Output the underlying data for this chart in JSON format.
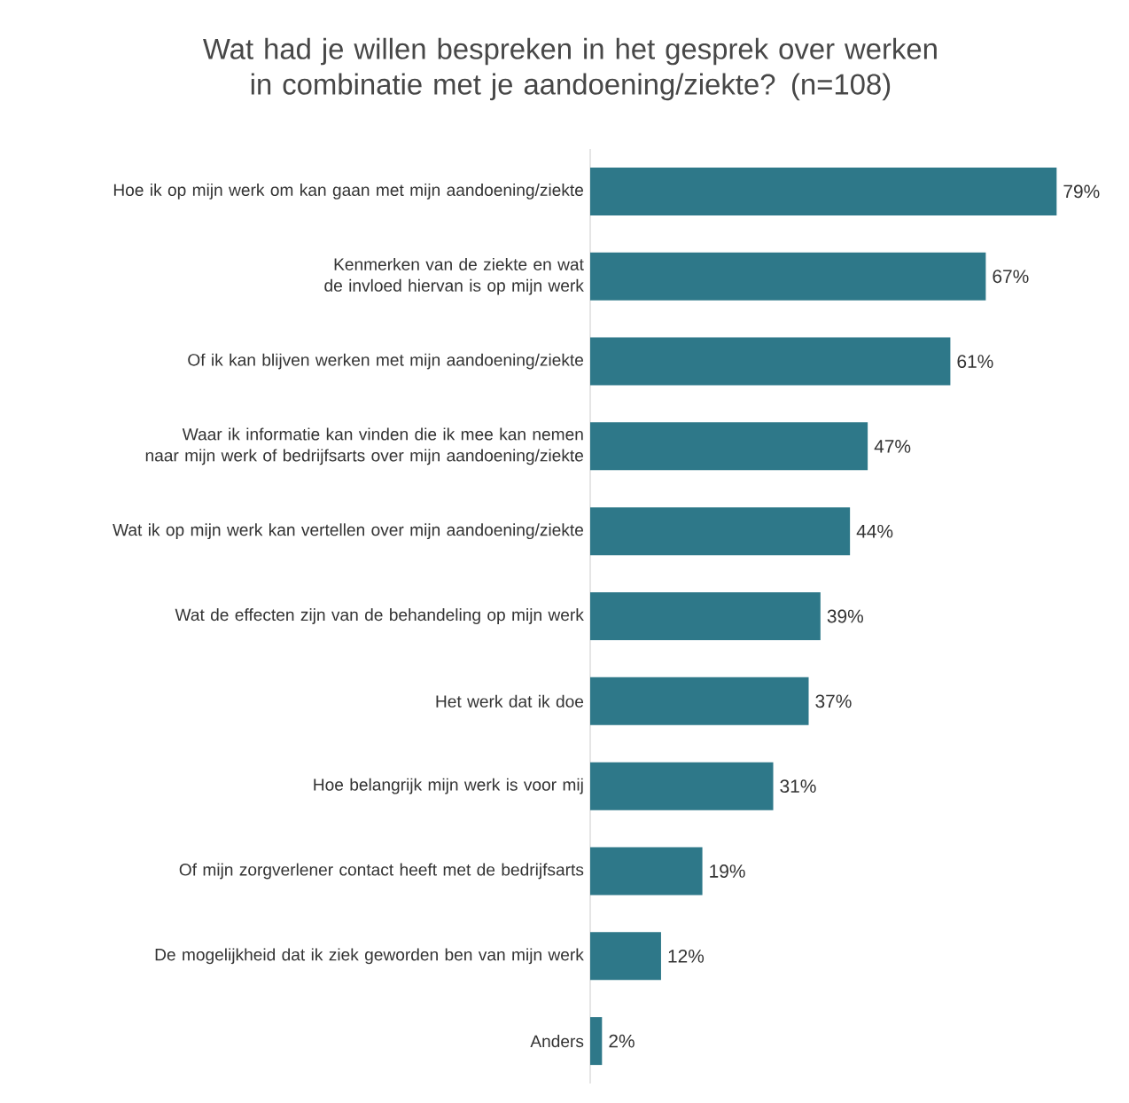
{
  "chart_data": {
    "type": "bar",
    "orientation": "horizontal",
    "title": "Wat had je willen bespreken in het gesprek over werken in combinatie met je aandoening/ziekte? (n=108)",
    "categories": [
      "Hoe ik op mijn werk om kan gaan met mijn aandoening/ziekte",
      "Kenmerken van de ziekte en wat de invloed hiervan is op mijn werk",
      "Of ik kan blijven werken met mijn aandoening/ziekte",
      "Waar ik informatie kan vinden die ik mee kan nemen naar mijn werk of bedrijfsarts over mijn aandoening/ziekte",
      "Wat ik op mijn werk kan vertellen over mijn aandoening/ziekte",
      "Wat de effecten zijn van de behandeling op mijn werk",
      "Het werk dat ik doe",
      "Hoe belangrijk mijn werk is voor mij",
      "Of mijn zorgverlener contact heeft met de bedrijfsarts",
      "De mogelijkheid dat ik ziek geworden ben van mijn werk",
      "Anders"
    ],
    "values": [
      79,
      67,
      61,
      47,
      44,
      39,
      37,
      31,
      19,
      12,
      2
    ],
    "value_labels": [
      "79%",
      "67%",
      "61%",
      "47%",
      "44%",
      "39%",
      "37%",
      "31%",
      "19%",
      "12%",
      "2%"
    ],
    "color": "#2e7889"
  }
}
